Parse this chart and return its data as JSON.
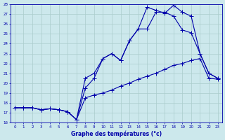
{
  "xlabel": "Graphe des températures (°c)",
  "bg_color": "#cce8ec",
  "grid_color": "#aacccc",
  "line_color": "#0000aa",
  "ylim": [
    16,
    28
  ],
  "xlim": [
    -0.5,
    23.5
  ],
  "yticks": [
    16,
    17,
    18,
    19,
    20,
    21,
    22,
    23,
    24,
    25,
    26,
    27,
    28
  ],
  "xticks": [
    0,
    1,
    2,
    3,
    4,
    5,
    6,
    7,
    8,
    9,
    10,
    11,
    12,
    13,
    14,
    15,
    16,
    17,
    18,
    19,
    20,
    21,
    22,
    23
  ],
  "line1_x": [
    0,
    1,
    2,
    3,
    4,
    5,
    6,
    7,
    8,
    9,
    10,
    11,
    12,
    13,
    14,
    15,
    16,
    17,
    18,
    19,
    20,
    21,
    22,
    23
  ],
  "line1_y": [
    17.5,
    17.5,
    17.5,
    17.3,
    17.4,
    17.3,
    17.1,
    16.3,
    18.5,
    18.8,
    19.0,
    19.3,
    19.7,
    20.0,
    20.4,
    20.7,
    21.0,
    21.4,
    21.8,
    22.0,
    22.3,
    22.5,
    20.5,
    20.4
  ],
  "line2_x": [
    0,
    1,
    2,
    3,
    4,
    5,
    6,
    7,
    8,
    9,
    10,
    11,
    12,
    13,
    14,
    15,
    16,
    17,
    18,
    19,
    20,
    21,
    22,
    23
  ],
  "line2_y": [
    17.5,
    17.5,
    17.5,
    17.3,
    17.4,
    17.3,
    17.1,
    16.3,
    19.5,
    20.5,
    22.5,
    23.0,
    22.3,
    24.3,
    25.5,
    25.5,
    27.2,
    27.2,
    26.8,
    25.4,
    25.1,
    23.0,
    21.0,
    20.5
  ],
  "line3_x": [
    0,
    1,
    2,
    3,
    4,
    5,
    6,
    7,
    8,
    9,
    10,
    11,
    12,
    13,
    14,
    15,
    16,
    17,
    18,
    19,
    20,
    21,
    22,
    23
  ],
  "line3_y": [
    17.5,
    17.5,
    17.5,
    17.3,
    17.4,
    17.3,
    17.1,
    16.3,
    20.5,
    21.0,
    22.5,
    23.0,
    22.3,
    24.3,
    25.5,
    27.7,
    27.4,
    27.1,
    27.9,
    27.2,
    26.8,
    23.0,
    21.0,
    20.5
  ]
}
